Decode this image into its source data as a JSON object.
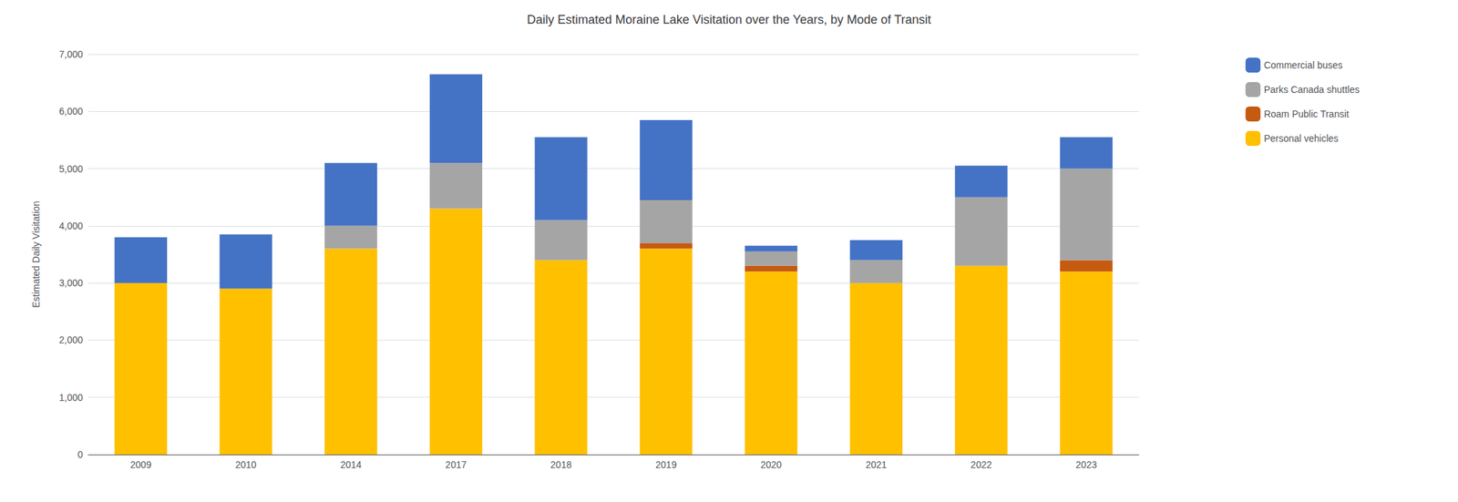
{
  "chart_data": {
    "type": "bar",
    "title": "Daily Estimated Moraine Lake Visitation over the Years, by Mode of Transit",
    "ylabel": "Estimated Daily Visitation",
    "categories": [
      "2009",
      "2010",
      "2014",
      "2017",
      "2018",
      "2019",
      "2020",
      "2021",
      "2022",
      "2023"
    ],
    "series": [
      {
        "name": "Personal vehicles",
        "color": "#FFC000",
        "values": [
          3000,
          2900,
          3600,
          4300,
          3400,
          3600,
          3200,
          3000,
          3300,
          3200
        ]
      },
      {
        "name": "Roam Public Transit",
        "color": "#C55A11",
        "values": [
          0,
          0,
          0,
          0,
          0,
          100,
          100,
          0,
          0,
          200
        ]
      },
      {
        "name": "Parks Canada shuttles",
        "color": "#A5A5A5",
        "values": [
          0,
          0,
          400,
          800,
          700,
          750,
          250,
          400,
          1200,
          1600
        ]
      },
      {
        "name": "Commercial buses",
        "color": "#4472C4",
        "values": [
          800,
          950,
          1100,
          1550,
          1450,
          1400,
          100,
          350,
          550,
          550
        ]
      }
    ],
    "stacked": true,
    "ylim": [
      0,
      7000
    ],
    "yticks": [
      0,
      {
        "value": 1000,
        "label": "1,000"
      },
      {
        "value": 2000,
        "label": "2,000"
      },
      {
        "value": 3000,
        "label": "3,000"
      },
      {
        "value": 4000,
        "label": "4,000"
      },
      {
        "value": 5000,
        "label": "5,000"
      },
      {
        "value": 6000,
        "label": "6,000"
      },
      {
        "value": 7000,
        "label": "7,000"
      }
    ],
    "grid": true,
    "legend": "right"
  }
}
